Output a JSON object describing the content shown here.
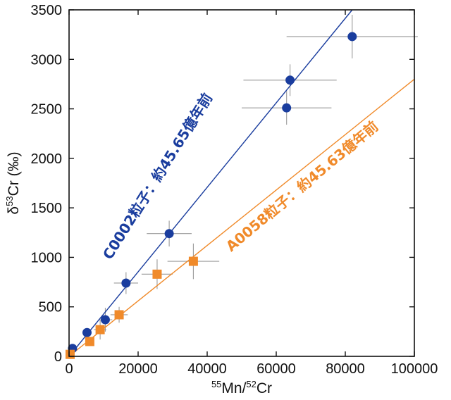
{
  "chart_data": {
    "type": "scatter",
    "xlabel": {
      "pre": "55",
      "mid1": "Mn/",
      "sup2": "52",
      "post": "Cr"
    },
    "ylabel": {
      "pre": "δ",
      "sup": "53",
      "post": "Cr (‰)"
    },
    "xlim": [
      0,
      100000
    ],
    "ylim": [
      0,
      3500
    ],
    "xticks": [
      0,
      20000,
      40000,
      60000,
      80000,
      100000
    ],
    "yticks": [
      0,
      500,
      1000,
      1500,
      2000,
      2500,
      3000,
      3500
    ],
    "grid": false,
    "colors": {
      "blue": "#1a3d9e",
      "orange": "#f08a2a",
      "errorbar": "#9a9a9a",
      "axis": "#111111"
    },
    "series": [
      {
        "name": "C0002粒子：約45.65億年前",
        "color": "#1a3d9e",
        "marker": "circle",
        "fit": {
          "x": [
            0,
            82000
          ],
          "y": [
            0,
            3500
          ]
        },
        "points": [
          {
            "x": 1000,
            "y": 80,
            "xerr": 500,
            "yerr": 30
          },
          {
            "x": 5200,
            "y": 240,
            "xerr": 700,
            "yerr": 40
          },
          {
            "x": 10500,
            "y": 370,
            "xerr": 2000,
            "yerr": 120
          },
          {
            "x": 16500,
            "y": 740,
            "xerr": 3500,
            "yerr": 110
          },
          {
            "x": 29000,
            "y": 1240,
            "xerr": 6500,
            "yerr": 130
          },
          {
            "x": 63000,
            "y": 2510,
            "xerr": 13000,
            "yerr": 170
          },
          {
            "x": 64000,
            "y": 2790,
            "xerr": 13500,
            "yerr": 160
          },
          {
            "x": 82000,
            "y": 3230,
            "xerr": 19000,
            "yerr": 220
          }
        ]
      },
      {
        "name": "A0058粒子：約45.63億年前",
        "color": "#f08a2a",
        "marker": "square",
        "fit": {
          "x": [
            0,
            100000
          ],
          "y": [
            0,
            2800
          ]
        },
        "points": [
          {
            "x": 300,
            "y": 20,
            "xerr": 300,
            "yerr": 20
          },
          {
            "x": 6000,
            "y": 150,
            "xerr": 800,
            "yerr": 40
          },
          {
            "x": 9000,
            "y": 270,
            "xerr": 1800,
            "yerr": 100
          },
          {
            "x": 14500,
            "y": 420,
            "xerr": 2500,
            "yerr": 80
          },
          {
            "x": 25500,
            "y": 830,
            "xerr": 4500,
            "yerr": 150
          },
          {
            "x": 36000,
            "y": 960,
            "xerr": 7500,
            "yerr": 180
          }
        ]
      }
    ]
  }
}
